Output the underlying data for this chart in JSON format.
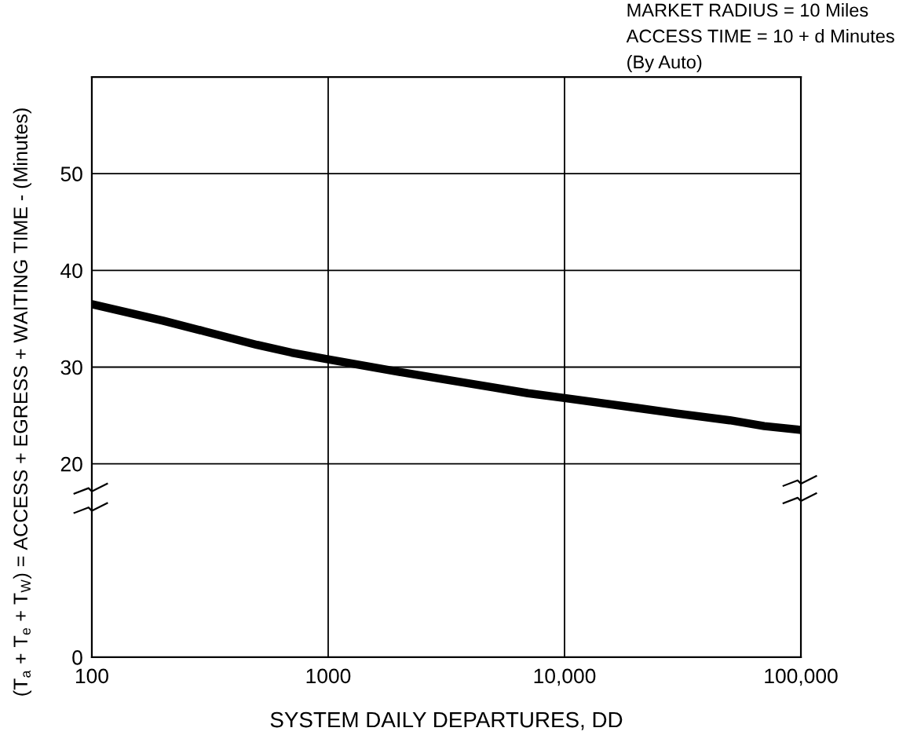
{
  "chart_data": {
    "type": "line",
    "xlabel": "SYSTEM DAILY DEPARTURES, DD",
    "ylabel": "(T$_{a}$ + T$_{e}$ + T$_{W}$) = ACCESS + EGRESS + WAITING TIME - (Minutes)",
    "annotations": [
      "MARKET RADIUS = 10 Miles",
      "ACCESS TIME = 10 + d Minutes",
      "(By Auto)"
    ],
    "x": [
      100,
      200,
      300,
      500,
      700,
      1000,
      2000,
      3000,
      5000,
      7000,
      10000,
      20000,
      30000,
      50000,
      70000,
      100000
    ],
    "values": [
      36.5,
      34.8,
      33.7,
      32.3,
      31.5,
      30.8,
      29.5,
      28.8,
      27.9,
      27.3,
      26.8,
      25.8,
      25.2,
      24.5,
      23.9,
      23.5
    ],
    "color": "#000000",
    "line_style": "solid",
    "log": "x",
    "grid": true,
    "xlim": [
      100,
      100000
    ],
    "xticks": [
      100,
      1000,
      {
        "value": 10000,
        "label": "10,000"
      },
      {
        "value": 100000,
        "label": "100,000"
      }
    ],
    "ylim": [
      0,
      60
    ],
    "yticks": [
      0,
      20,
      30,
      40,
      50
    ]
  }
}
